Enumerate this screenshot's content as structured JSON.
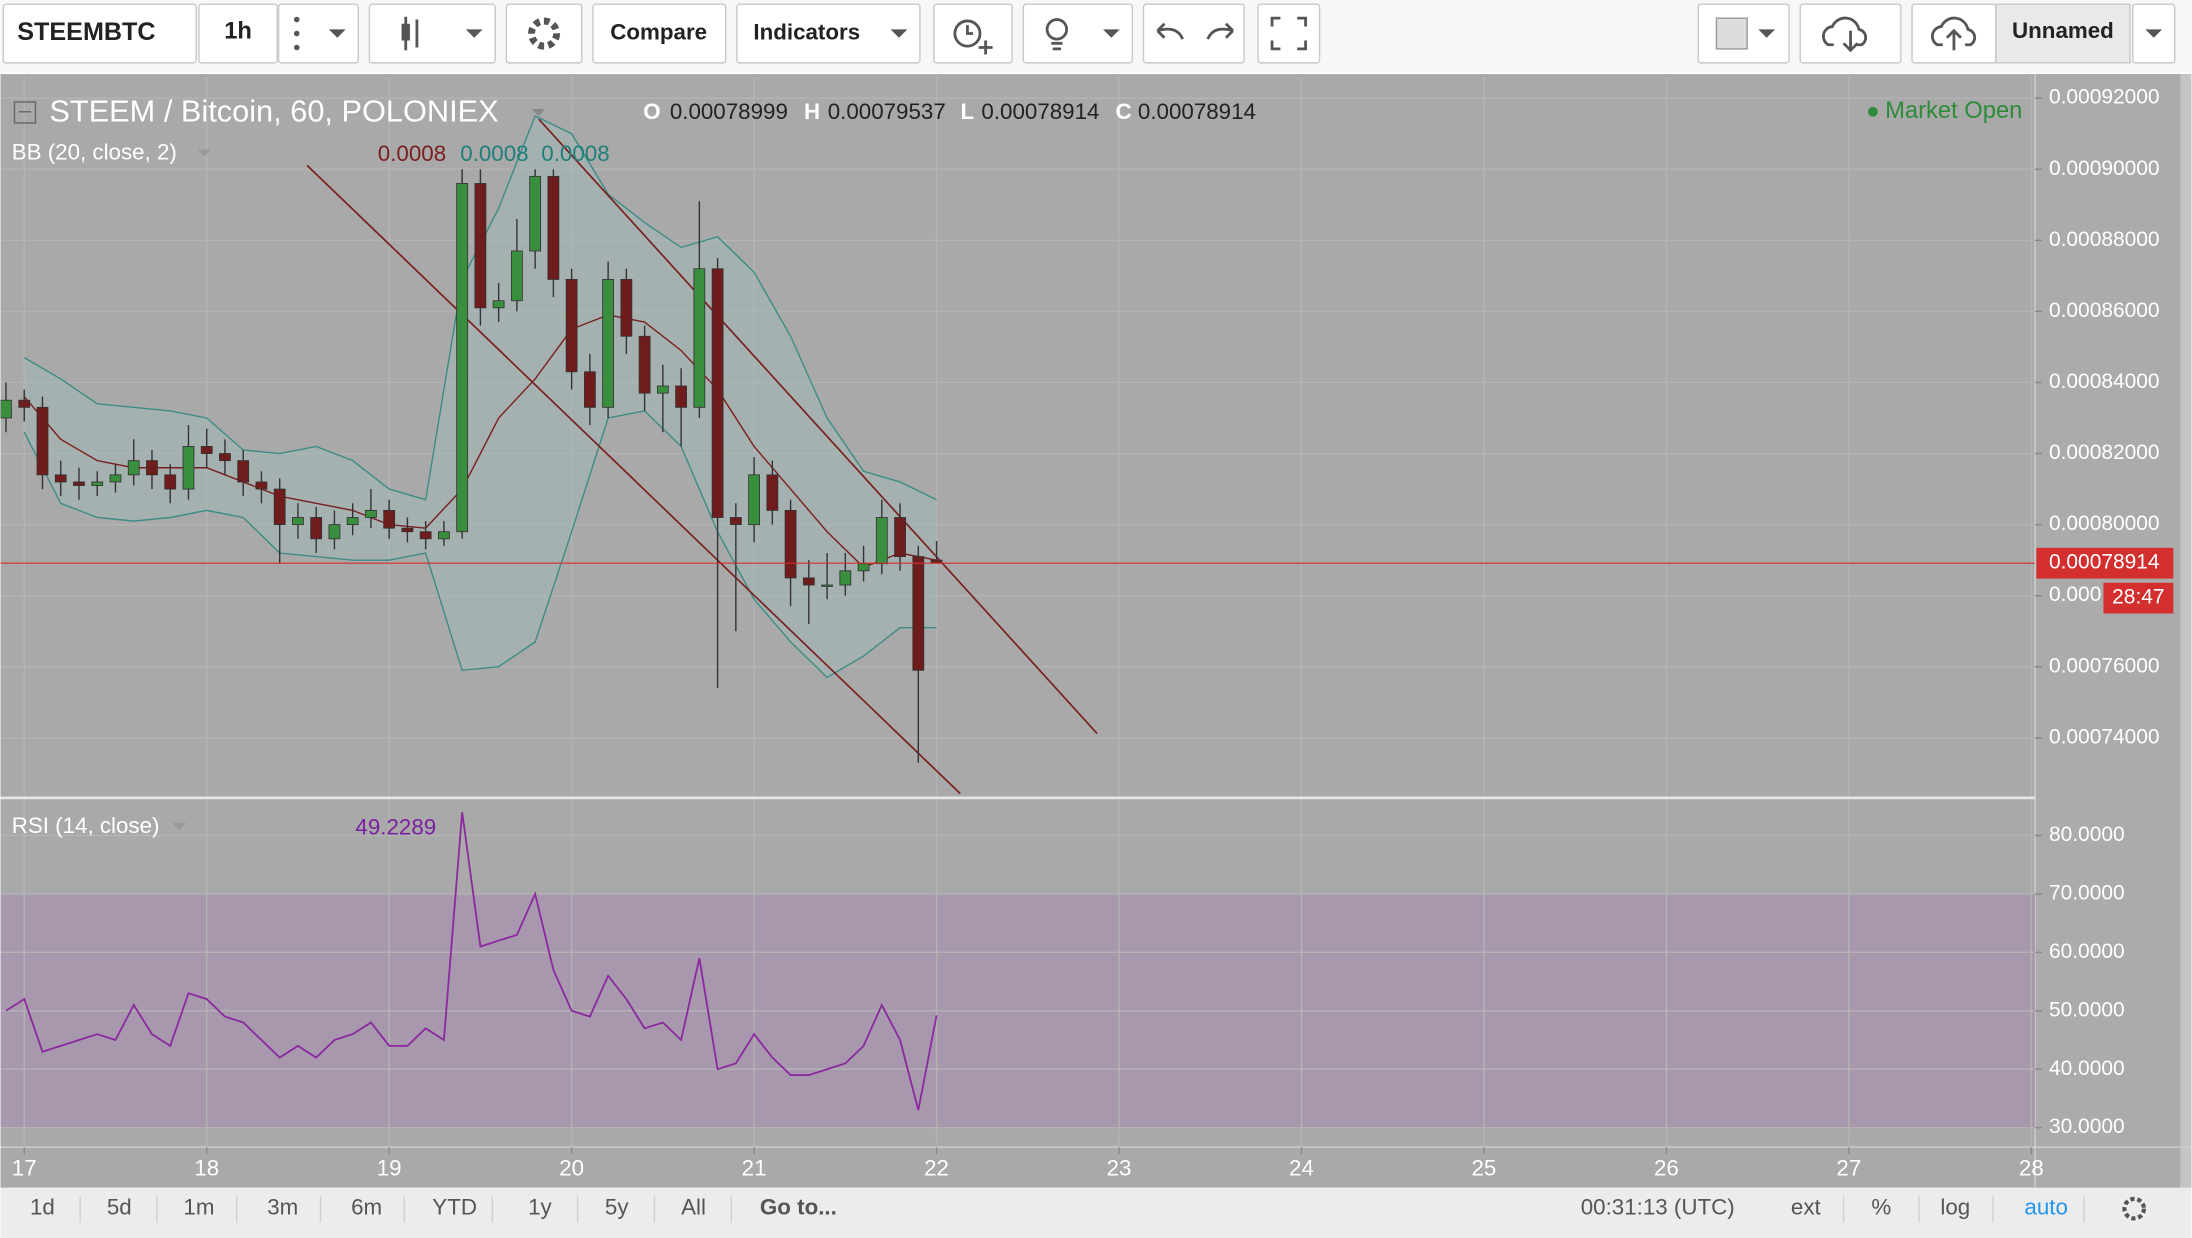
{
  "toolbar": {
    "symbol": "STEEMBTC",
    "interval": "1h",
    "compare": "Compare",
    "indicators": "Indicators",
    "layout_name": "Unnamed"
  },
  "chart_data": [
    {
      "type": "candlestick",
      "title": "STEEM / Bitcoin, 60, POLONIEX",
      "ohlc_letters": [
        "O",
        "H",
        "L",
        "C"
      ],
      "status": "Market Open",
      "countdown": "28:47",
      "up_color": "#3a8f3e",
      "down_color": "#6e1c1c",
      "grid": true,
      "xlim": [
        16.87,
        28.02
      ],
      "xticks": [
        17,
        18,
        19,
        20,
        21,
        22,
        23,
        24,
        25,
        26,
        27,
        28
      ],
      "ylim": [
        0.0007235,
        0.000926
      ],
      "yticks": [
        {
          "value": 0.00074,
          "label": "0.00074000"
        },
        {
          "value": 0.00076,
          "label": "0.00076000"
        },
        {
          "value": 0.00078,
          "label": "0.000"
        },
        {
          "value": 0.0008,
          "label": "0.00080000"
        },
        {
          "value": 0.00082,
          "label": "0.00082000"
        },
        {
          "value": 0.00084,
          "label": "0.00084000"
        },
        {
          "value": 0.00086,
          "label": "0.00086000"
        },
        {
          "value": 0.00088,
          "label": "0.00088000"
        },
        {
          "value": 0.0009,
          "label": "0.00090000"
        },
        {
          "value": 0.00092,
          "label": "0.00092000"
        }
      ],
      "x": [
        16.9,
        17,
        17.1,
        17.2,
        17.3,
        17.4,
        17.5,
        17.6,
        17.7,
        17.8,
        17.9,
        18,
        18.1,
        18.2,
        18.3,
        18.4,
        18.5,
        18.6,
        18.7,
        18.8,
        18.9,
        19,
        19.1,
        19.2,
        19.3,
        19.4,
        19.5,
        19.6,
        19.7,
        19.8,
        19.9,
        20,
        20.1,
        20.2,
        20.3,
        20.4,
        20.5,
        20.6,
        20.7,
        20.8,
        20.9,
        21,
        21.1,
        21.2,
        21.3,
        21.4,
        21.5,
        21.6,
        21.7,
        21.8,
        21.9,
        22
      ],
      "open": [
        0.00083,
        0.000835,
        0.000833,
        0.000814,
        0.000812,
        0.000811,
        0.000812,
        0.000814,
        0.000818,
        0.000814,
        0.00081,
        0.000822,
        0.00082,
        0.000818,
        0.000812,
        0.00081,
        0.0008,
        0.000802,
        0.000796,
        0.0008,
        0.000802,
        0.000804,
        0.000799,
        0.000798,
        0.000796,
        0.000798,
        0.000896,
        0.000861,
        0.000863,
        0.000877,
        0.000898,
        0.000869,
        0.000843,
        0.000833,
        0.000869,
        0.000853,
        0.000837,
        0.000839,
        0.000833,
        0.000872,
        0.000802,
        0.0008,
        0.000814,
        0.000804,
        0.000785,
        0.000783,
        0.000783,
        0.000787,
        0.000789,
        0.000802,
        0.000791,
        0.00078999
      ],
      "high": [
        0.00084,
        0.000838,
        0.000836,
        0.000818,
        0.000816,
        0.000815,
        0.000817,
        0.000824,
        0.000821,
        0.000817,
        0.000828,
        0.000827,
        0.000824,
        0.000821,
        0.000815,
        0.000813,
        0.000806,
        0.000805,
        0.000804,
        0.000806,
        0.00081,
        0.000807,
        0.000802,
        0.000801,
        0.000801,
        0.0009,
        0.0009,
        0.000868,
        0.000886,
        0.0009,
        0.0009,
        0.000872,
        0.000848,
        0.000874,
        0.000872,
        0.000856,
        0.000845,
        0.000844,
        0.000891,
        0.000875,
        0.000806,
        0.000819,
        0.000818,
        0.000807,
        0.00079,
        0.000792,
        0.000792,
        0.000794,
        0.000807,
        0.000806,
        0.000794,
        0.00079537
      ],
      "low": [
        0.000826,
        0.000829,
        0.00081,
        0.000808,
        0.000807,
        0.000808,
        0.000809,
        0.000811,
        0.00081,
        0.000806,
        0.000807,
        0.000816,
        0.000814,
        0.000808,
        0.000806,
        0.000789,
        0.000796,
        0.000792,
        0.000793,
        0.000797,
        0.000799,
        0.000796,
        0.000795,
        0.000793,
        0.000794,
        0.000796,
        0.000856,
        0.000857,
        0.00086,
        0.000872,
        0.000864,
        0.000838,
        0.000828,
        0.00083,
        0.000848,
        0.000832,
        0.000826,
        0.000822,
        0.00083,
        0.000754,
        0.00077,
        0.000795,
        0.0008,
        0.000777,
        0.000772,
        0.000779,
        0.00078,
        0.000784,
        0.000786,
        0.000787,
        0.000733,
        0.00078914
      ],
      "close": [
        0.000835,
        0.000833,
        0.000814,
        0.000812,
        0.000811,
        0.000812,
        0.000814,
        0.000818,
        0.000814,
        0.00081,
        0.000822,
        0.00082,
        0.000818,
        0.000812,
        0.00081,
        0.0008,
        0.000802,
        0.000796,
        0.0008,
        0.000802,
        0.000804,
        0.000799,
        0.000798,
        0.000796,
        0.000798,
        0.000896,
        0.000861,
        0.000863,
        0.000877,
        0.000898,
        0.000869,
        0.000843,
        0.000833,
        0.000869,
        0.000853,
        0.000837,
        0.000839,
        0.000833,
        0.000872,
        0.000802,
        0.0008,
        0.000814,
        0.000804,
        0.000785,
        0.000783,
        0.000783,
        0.000787,
        0.000789,
        0.000802,
        0.000791,
        0.000759,
        0.00078914
      ],
      "bb": {
        "name": "BB (20, close, 2)",
        "legend_values": [
          0.0008,
          0.0008,
          0.0008
        ],
        "band_color": "#a3b8b6",
        "band_line_color": "#3d8c86",
        "basis_color": "#7a1f1f",
        "x": [
          17,
          17.2,
          17.4,
          17.6,
          17.8,
          18,
          18.2,
          18.4,
          18.6,
          18.8,
          19,
          19.2,
          19.4,
          19.6,
          19.8,
          20,
          20.2,
          20.4,
          20.6,
          20.8,
          21,
          21.2,
          21.4,
          21.6,
          21.8,
          22
        ],
        "upper": [
          0.000847,
          0.000841,
          0.000834,
          0.000833,
          0.000832,
          0.00083,
          0.000821,
          0.00082,
          0.000822,
          0.000818,
          0.00081,
          0.000807,
          0.000869,
          0.000889,
          0.000915,
          0.00091,
          0.000893,
          0.000885,
          0.000878,
          0.000881,
          0.000871,
          0.000853,
          0.00083,
          0.000815,
          0.000812,
          0.000807
        ],
        "basis": [
          0.000836,
          0.000824,
          0.000818,
          0.000816,
          0.000816,
          0.000816,
          0.000812,
          0.000808,
          0.000806,
          0.000804,
          0.0008,
          0.000799,
          0.00081,
          0.00083,
          0.000841,
          0.000855,
          0.000859,
          0.000857,
          0.000849,
          0.000838,
          0.000822,
          0.00081,
          0.000798,
          0.000788,
          0.000792,
          0.00079
        ],
        "lower": [
          0.000826,
          0.000806,
          0.000802,
          0.000801,
          0.000802,
          0.000804,
          0.000802,
          0.000792,
          0.000791,
          0.00079,
          0.00079,
          0.000792,
          0.000759,
          0.00076,
          0.000767,
          0.000798,
          0.00083,
          0.000832,
          0.000822,
          0.000798,
          0.000779,
          0.000767,
          0.000757,
          0.000763,
          0.000771,
          0.000771
        ]
      },
      "trendlines": [
        {
          "x": [
            18.55,
            22.13
          ],
          "y": [
            0.0009011,
            0.0007243
          ]
        },
        {
          "x": [
            19.82,
            22.88
          ],
          "y": [
            0.0009141,
            0.0007412
          ]
        }
      ],
      "trendline_color": "#7a1f1f",
      "last_price_color": "#d32f2f"
    },
    {
      "type": "line",
      "title": "RSI (14, close)",
      "color": "#8b2a9e",
      "band": [
        30,
        70
      ],
      "band_color": "#a898ae",
      "grid": true,
      "xlim": [
        16.87,
        28.02
      ],
      "xticks": [
        17,
        18,
        19,
        20,
        21,
        22,
        23,
        24,
        25,
        26,
        27,
        28
      ],
      "ylim": [
        26.9,
        86.2
      ],
      "yticks": [
        {
          "value": 30,
          "label": "30.0000"
        },
        {
          "value": 40,
          "label": "40.0000"
        },
        {
          "value": 50,
          "label": "50.0000"
        },
        {
          "value": 60,
          "label": "60.0000"
        },
        {
          "value": 70,
          "label": "70.0000"
        },
        {
          "value": 80,
          "label": "80.0000"
        }
      ],
      "x": [
        16.9,
        17,
        17.1,
        17.2,
        17.3,
        17.4,
        17.5,
        17.6,
        17.7,
        17.8,
        17.9,
        18,
        18.1,
        18.2,
        18.3,
        18.4,
        18.5,
        18.6,
        18.7,
        18.8,
        18.9,
        19,
        19.1,
        19.2,
        19.3,
        19.4,
        19.5,
        19.6,
        19.7,
        19.8,
        19.9,
        20,
        20.1,
        20.2,
        20.3,
        20.4,
        20.5,
        20.6,
        20.7,
        20.8,
        20.9,
        21,
        21.1,
        21.2,
        21.3,
        21.4,
        21.5,
        21.6,
        21.7,
        21.8,
        21.9,
        22
      ],
      "values": [
        50,
        52,
        43,
        44,
        45,
        46,
        45,
        51,
        46,
        44,
        53,
        52,
        49,
        48,
        45,
        42,
        44,
        42,
        45,
        46,
        48,
        44,
        44,
        47,
        45,
        84,
        61,
        62,
        63,
        70,
        57,
        50,
        49,
        56,
        52,
        47,
        48,
        45,
        59,
        40,
        41,
        46,
        42,
        39,
        39,
        40,
        41,
        44,
        51,
        45,
        33,
        49.2289
      ]
    }
  ],
  "bottom_bar": {
    "ranges": [
      "1d",
      "5d",
      "1m",
      "3m",
      "6m",
      "YTD",
      "1y",
      "5y",
      "All"
    ],
    "goto": "Go to...",
    "clock": "00:31:13 (UTC)",
    "options": [
      "ext",
      "%",
      "log",
      "auto"
    ]
  }
}
